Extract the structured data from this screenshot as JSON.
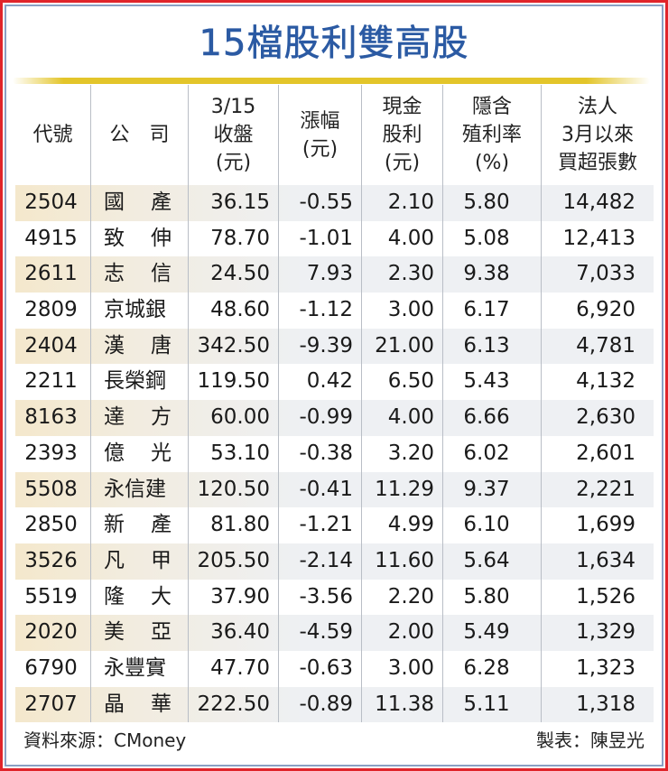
{
  "title": "15檔股利雙高股",
  "table": {
    "headers": [
      "代號",
      "公　司",
      "3/15\n收盤\n(元)",
      "漲幅\n(元)",
      "現金\n股利\n(元)",
      "隱含\n殖利率\n(%)",
      "法人\n3月以來\n買超張數"
    ],
    "rows": [
      {
        "code": "2504",
        "company": "國產",
        "close": "36.15",
        "change": "-0.55",
        "dividend": "2.10",
        "yield": "5.80",
        "net_buy": "14,482"
      },
      {
        "code": "4915",
        "company": "致伸",
        "close": "78.70",
        "change": "-1.01",
        "dividend": "4.00",
        "yield": "5.08",
        "net_buy": "12,413"
      },
      {
        "code": "2611",
        "company": "志信",
        "close": "24.50",
        "change": "7.93",
        "dividend": "2.30",
        "yield": "9.38",
        "net_buy": "7,033"
      },
      {
        "code": "2809",
        "company": "京城銀",
        "close": "48.60",
        "change": "-1.12",
        "dividend": "3.00",
        "yield": "6.17",
        "net_buy": "6,920"
      },
      {
        "code": "2404",
        "company": "漢唐",
        "close": "342.50",
        "change": "-9.39",
        "dividend": "21.00",
        "yield": "6.13",
        "net_buy": "4,781"
      },
      {
        "code": "2211",
        "company": "長榮鋼",
        "close": "119.50",
        "change": "0.42",
        "dividend": "6.50",
        "yield": "5.43",
        "net_buy": "4,132"
      },
      {
        "code": "8163",
        "company": "達方",
        "close": "60.00",
        "change": "-0.99",
        "dividend": "4.00",
        "yield": "6.66",
        "net_buy": "2,630"
      },
      {
        "code": "2393",
        "company": "億光",
        "close": "53.10",
        "change": "-0.38",
        "dividend": "3.20",
        "yield": "6.02",
        "net_buy": "2,601"
      },
      {
        "code": "5508",
        "company": "永信建",
        "close": "120.50",
        "change": "-0.41",
        "dividend": "11.29",
        "yield": "9.37",
        "net_buy": "2,221"
      },
      {
        "code": "2850",
        "company": "新產",
        "close": "81.80",
        "change": "-1.21",
        "dividend": "4.99",
        "yield": "6.10",
        "net_buy": "1,699"
      },
      {
        "code": "3526",
        "company": "凡甲",
        "close": "205.50",
        "change": "-2.14",
        "dividend": "11.60",
        "yield": "5.64",
        "net_buy": "1,634"
      },
      {
        "code": "5519",
        "company": "隆大",
        "close": "37.90",
        "change": "-3.56",
        "dividend": "2.20",
        "yield": "5.80",
        "net_buy": "1,526"
      },
      {
        "code": "2020",
        "company": "美亞",
        "close": "36.40",
        "change": "-4.59",
        "dividend": "2.00",
        "yield": "5.49",
        "net_buy": "1,329"
      },
      {
        "code": "6790",
        "company": "永豐實",
        "close": "47.70",
        "change": "-0.63",
        "dividend": "3.00",
        "yield": "6.28",
        "net_buy": "1,323"
      },
      {
        "code": "2707",
        "company": "晶華",
        "close": "222.50",
        "change": "-0.89",
        "dividend": "11.38",
        "yield": "5.11",
        "net_buy": "1,318"
      }
    ]
  },
  "footer": {
    "source": "資料來源：CMoney",
    "credit": "製表：陳昱光"
  },
  "colors": {
    "title": "#2b5aa3",
    "rule": "#e3c52a",
    "frame_outer": "#e0242a",
    "frame_inner": "#8aa0c4",
    "stripe_left": "#f4e8cc",
    "stripe_right": "#eef0f3"
  }
}
